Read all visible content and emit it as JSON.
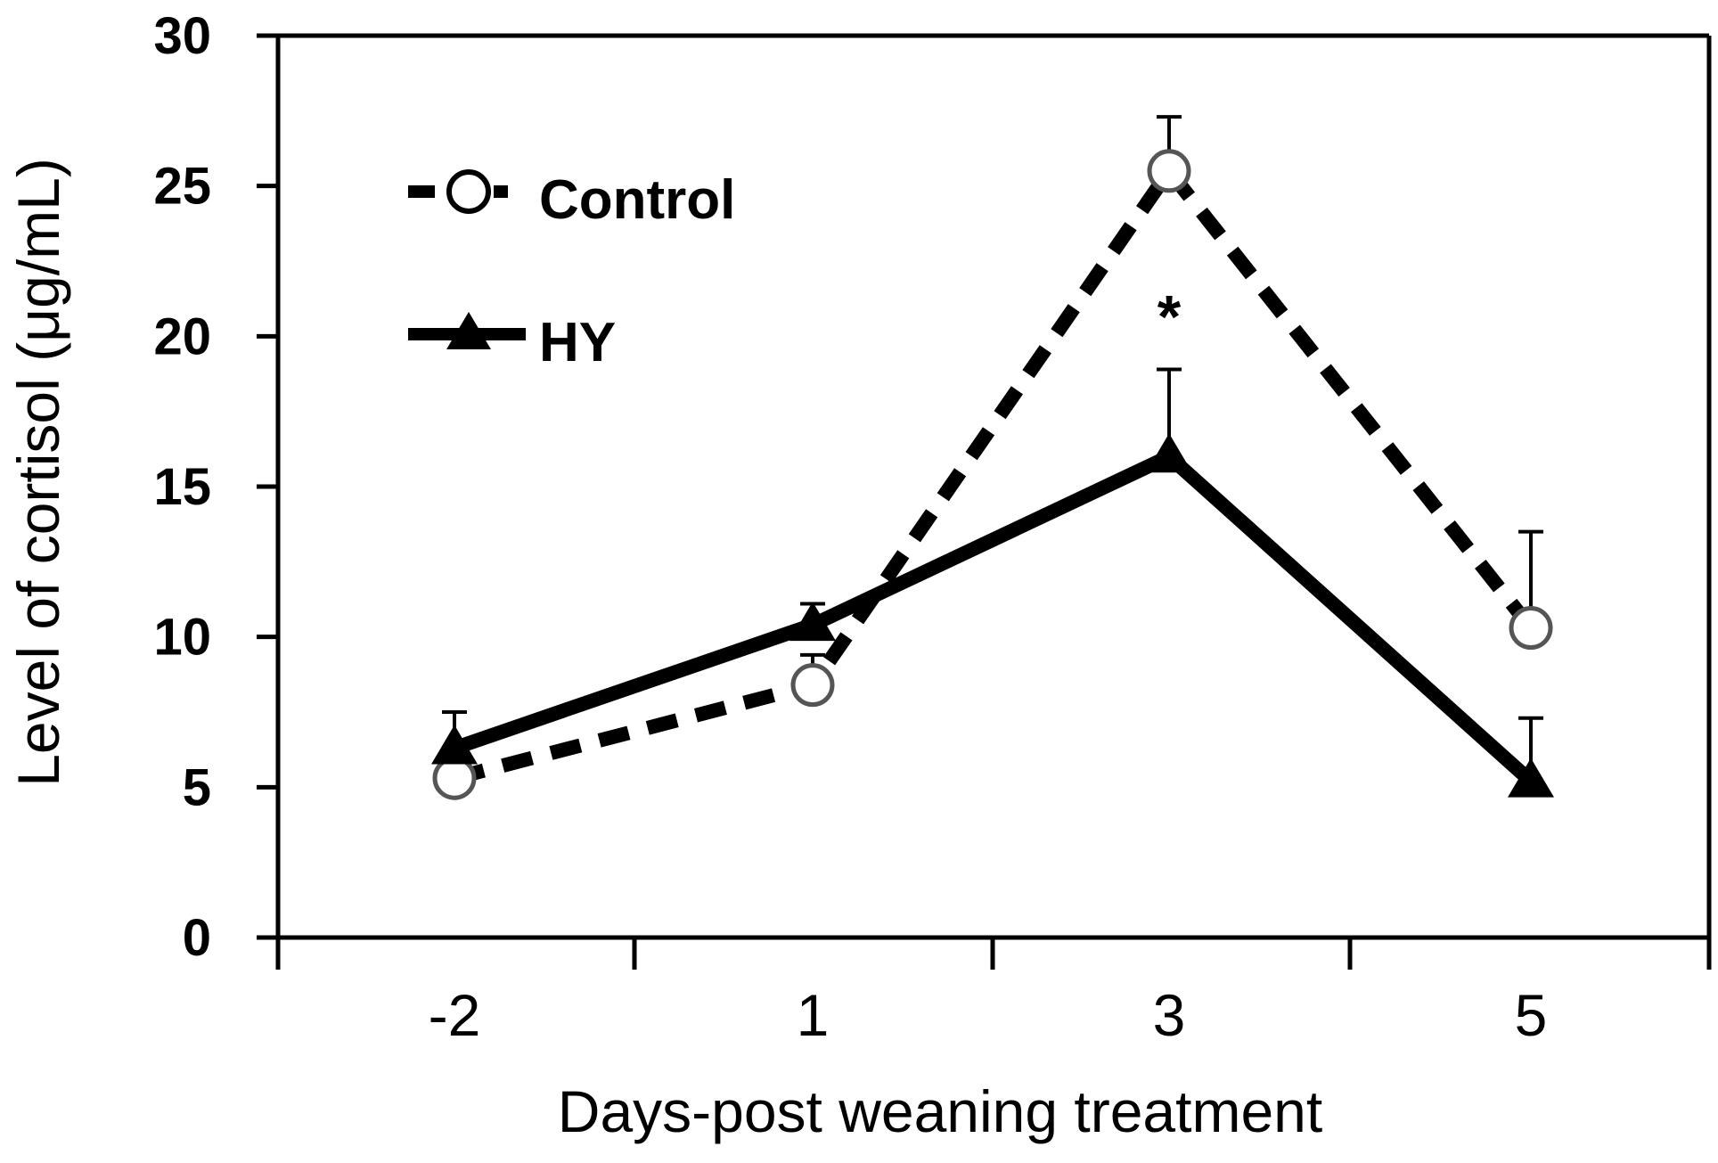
{
  "chart_data": {
    "type": "line",
    "xlabel": "Days-post weaning treatment",
    "ylabel": "Level of cortisol  (μg/mL)",
    "categories": [
      "-2",
      "1",
      "3",
      "5"
    ],
    "ylim": [
      0,
      30
    ],
    "yticks": [
      "0",
      "5",
      "10",
      "15",
      "20",
      "25",
      "30"
    ],
    "grid": false,
    "legend_position": "top-left",
    "series": [
      {
        "name": "Control",
        "marker": "open-circle",
        "line_style": "dashed",
        "values": [
          5.3,
          8.4,
          25.5,
          10.3
        ],
        "error": [
          0.8,
          1.0,
          1.8,
          3.2
        ]
      },
      {
        "name": "HY",
        "marker": "filled-triangle",
        "line_style": "solid",
        "values": [
          6.3,
          10.4,
          16.0,
          5.2
        ],
        "error": [
          1.2,
          0.7,
          2.9,
          2.1
        ]
      }
    ],
    "annotations": [
      {
        "text": "*",
        "category": "3",
        "y": 20.8
      }
    ]
  }
}
